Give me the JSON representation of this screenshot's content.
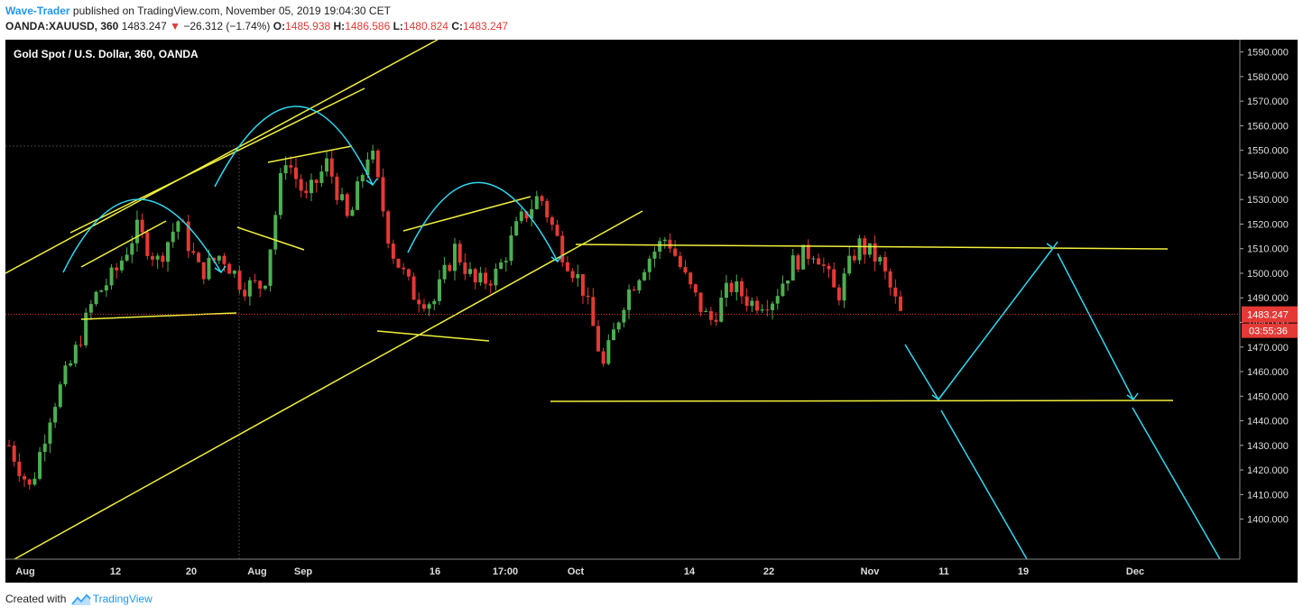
{
  "header": {
    "author": "Wave-Trader",
    "published_text": " published on TradingView.com, November 05, 2019 19:04:30 CET",
    "symbol": "OANDA:XAUUSD, 360",
    "last": "1483.247",
    "change_arrow": "▼",
    "change": "−26.312 (−1.74%)",
    "open_label": "O:",
    "open": "1485.938",
    "high_label": "H:",
    "high": "1486.586",
    "low_label": "L:",
    "low": "1480.824",
    "close_label": "C:",
    "close": "1483.247"
  },
  "chart_title": "Gold Spot / U.S. Dollar, 360, OANDA",
  "footer": {
    "created_with": "Created with",
    "brand": "TradingView"
  },
  "colors": {
    "background": "#000000",
    "up": "#4caf50",
    "down": "#e53935",
    "trendline": "#f0f03c",
    "arrow": "#30d8f0",
    "price_tag": "#e53935"
  },
  "chart_data": {
    "type": "candlestick",
    "title": "Gold Spot / U.S. Dollar, 360, OANDA",
    "ylim": [
      1400,
      1595
    ],
    "y_ticks": [
      "1590.000",
      "1580.000",
      "1570.000",
      "1560.000",
      "1550.000",
      "1540.000",
      "1530.000",
      "1520.000",
      "1510.000",
      "1500.000",
      "1490.000",
      "1480.000",
      "1470.000",
      "1460.000",
      "1450.000",
      "1440.000",
      "1430.000",
      "1420.000",
      "1410.000",
      "1400.000"
    ],
    "x_ticks": [
      "Aug",
      "12",
      "20",
      "Aug",
      "Sep",
      "16",
      "17:00",
      "Oct",
      "14",
      "22",
      "Nov",
      "11",
      "19",
      "Dec"
    ],
    "last_price_label": "1483.247",
    "countdown_label": "03:55:36",
    "approx_close_path": [
      [
        "Aug",
        1430
      ],
      [
        "Aug",
        1412
      ],
      [
        "Aug",
        1445
      ],
      [
        "Aug",
        1465
      ],
      [
        "Aug",
        1490
      ],
      [
        "12",
        1500
      ],
      [
        "12",
        1518
      ],
      [
        "12",
        1505
      ],
      [
        "12",
        1522
      ],
      [
        "20",
        1500
      ],
      [
        "20",
        1508
      ],
      [
        "20",
        1495
      ],
      [
        "Aug",
        1495
      ],
      [
        "Aug",
        1548
      ],
      [
        "Aug",
        1530
      ],
      [
        "Sep",
        1545
      ],
      [
        "Sep",
        1520
      ],
      [
        "Sep",
        1552
      ],
      [
        "Sep",
        1510
      ],
      [
        "Sep",
        1492
      ],
      [
        "16",
        1488
      ],
      [
        "16",
        1510
      ],
      [
        "16",
        1495
      ],
      [
        "16",
        1500
      ],
      [
        "17:00",
        1520
      ],
      [
        "17:00",
        1532
      ],
      [
        "17:00",
        1510
      ],
      [
        "Oct",
        1495
      ],
      [
        "Oct",
        1462
      ],
      [
        "Oct",
        1490
      ],
      [
        "Oct",
        1505
      ],
      [
        "Oct",
        1515
      ],
      [
        "14",
        1495
      ],
      [
        "14",
        1480
      ],
      [
        "14",
        1495
      ],
      [
        "22",
        1488
      ],
      [
        "22",
        1490
      ],
      [
        "22",
        1505
      ],
      [
        "22",
        1510
      ],
      [
        "Nov",
        1490
      ],
      [
        "Nov",
        1512
      ],
      [
        "Nov",
        1505
      ],
      [
        "Nov",
        1483
      ]
    ],
    "annotations": {
      "trendlines": "yellow channel, wedges and a 1460–1518 range box",
      "arrows": "cyan arcs and projection arrows"
    }
  }
}
